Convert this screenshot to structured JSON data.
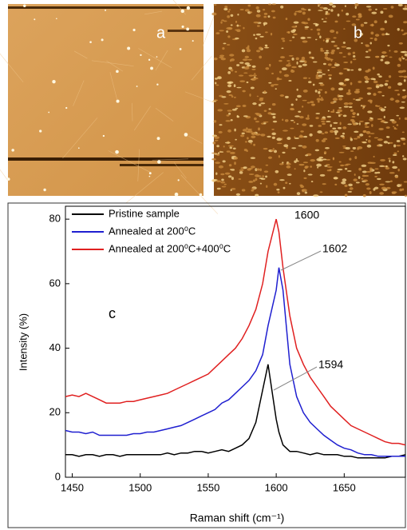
{
  "panels": [
    {
      "label": "a"
    },
    {
      "label": "b"
    }
  ],
  "chart_data": {
    "type": "line",
    "xlabel": "Raman shift  (cm⁻¹)",
    "ylabel": "Intensity (%)",
    "xlim": [
      1445,
      1695
    ],
    "ylim": [
      0,
      84
    ],
    "xticks": [
      1450,
      1500,
      1550,
      1600,
      1650
    ],
    "yticks": [
      0,
      20,
      40,
      60,
      80
    ],
    "legend": "upper left",
    "x": [
      1445,
      1450,
      1455,
      1460,
      1465,
      1470,
      1475,
      1480,
      1485,
      1490,
      1495,
      1500,
      1505,
      1510,
      1515,
      1520,
      1525,
      1530,
      1535,
      1540,
      1545,
      1550,
      1555,
      1560,
      1565,
      1570,
      1575,
      1580,
      1585,
      1590,
      1594,
      1600,
      1602,
      1605,
      1610,
      1615,
      1620,
      1625,
      1630,
      1635,
      1640,
      1645,
      1650,
      1655,
      1660,
      1665,
      1670,
      1675,
      1680,
      1685,
      1690,
      1695
    ],
    "series": [
      {
        "name": "Pristine sample",
        "color": "#000000",
        "values": [
          7,
          7,
          6.5,
          7,
          7,
          6.5,
          7,
          7,
          6.5,
          7,
          7,
          7,
          7,
          7,
          7,
          7.5,
          7,
          7.5,
          7.5,
          8,
          8,
          7.5,
          8,
          8.5,
          8,
          9,
          10,
          12,
          17,
          27,
          35,
          18,
          14,
          10,
          8,
          8,
          7.5,
          7,
          7.5,
          7,
          7,
          7,
          6.5,
          6.5,
          6,
          6,
          6,
          6,
          6,
          6.5,
          6.5,
          7
        ]
      },
      {
        "name": "Annealed at 200⁰C",
        "color": "#1f1fd0",
        "values": [
          14.5,
          14,
          14,
          13.5,
          14,
          13,
          13,
          13,
          13,
          13,
          13.5,
          13.5,
          14,
          14,
          14.5,
          15,
          15.5,
          16,
          17,
          18,
          19,
          20,
          21,
          23,
          24,
          26,
          28,
          30,
          33,
          38,
          47,
          58,
          65,
          58,
          35,
          25,
          20,
          17,
          15,
          13,
          11.5,
          10,
          9,
          8.5,
          7.5,
          7,
          7,
          6.5,
          6.5,
          6.5,
          6.5,
          6.5
        ]
      },
      {
        "name": "Annealed at 200⁰C+400⁰C",
        "color": "#e02020",
        "values": [
          25,
          25.5,
          25,
          26,
          25,
          24,
          23,
          23,
          23,
          23.5,
          23.5,
          24,
          24.5,
          25,
          25.5,
          26,
          27,
          28,
          29,
          30,
          31,
          32,
          34,
          36,
          38,
          40,
          43,
          47,
          52,
          60,
          70,
          80,
          76,
          65,
          50,
          40,
          35,
          31,
          28,
          25,
          22,
          20,
          18,
          16,
          15,
          14,
          13,
          12,
          11,
          10.5,
          10.5,
          10
        ]
      }
    ],
    "annotations": [
      {
        "text": "1600"
      },
      {
        "text": "1602"
      },
      {
        "text": "1594"
      },
      {
        "text": "c"
      }
    ]
  }
}
